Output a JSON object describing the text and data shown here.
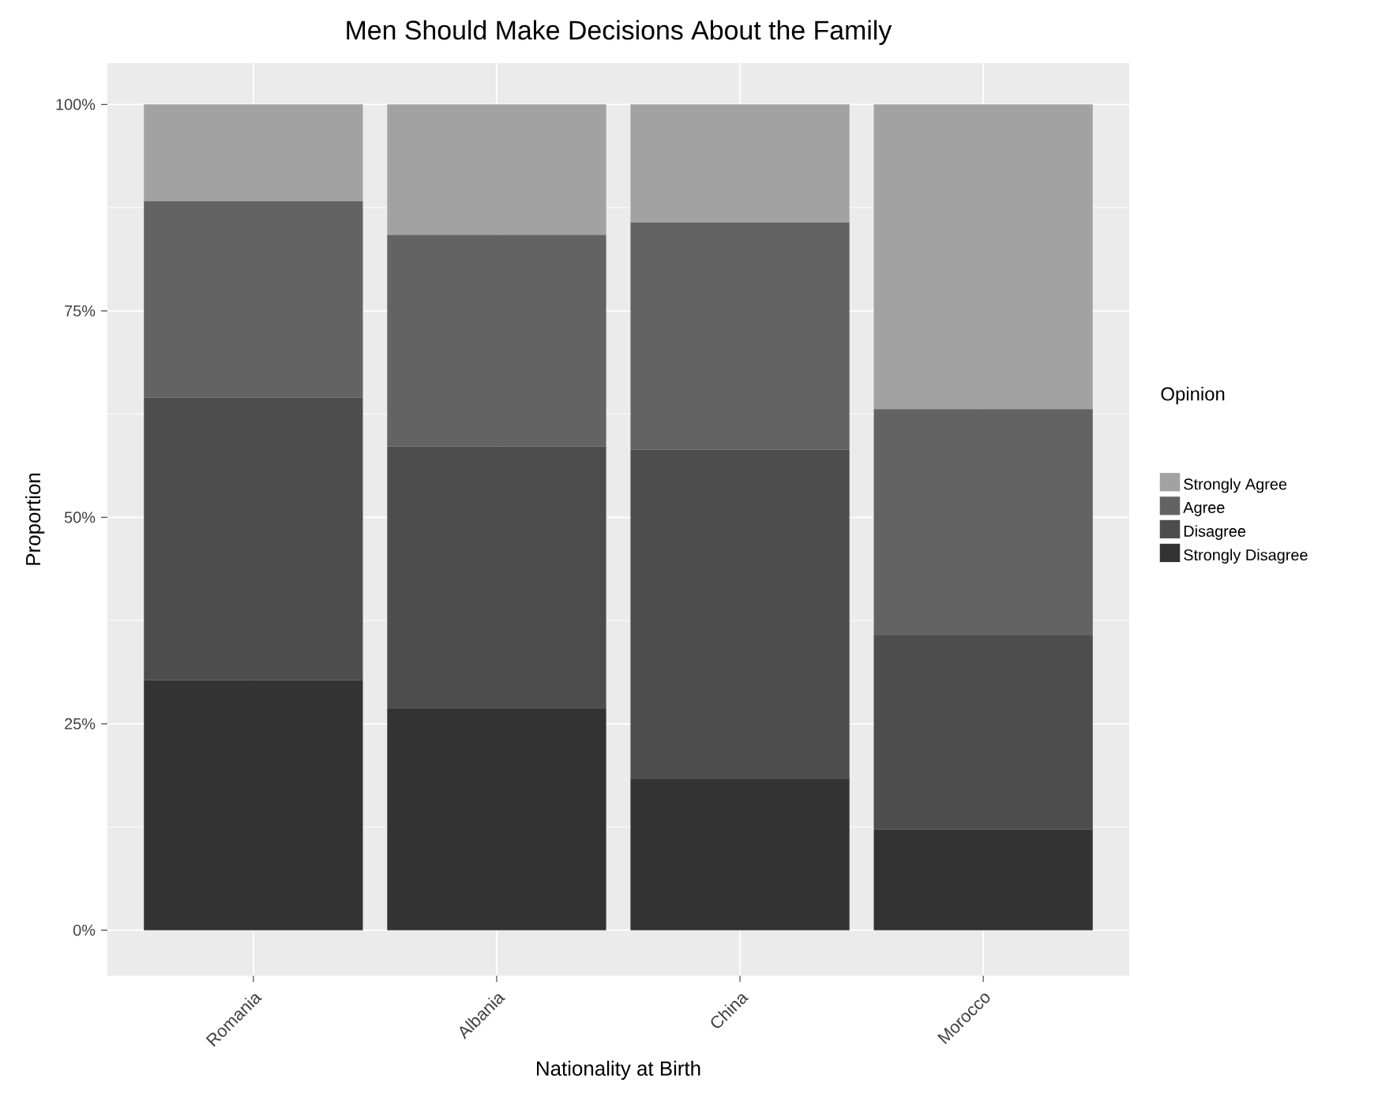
{
  "chart_data": {
    "type": "bar",
    "stacked": true,
    "title": "Men Should Make Decisions About the Family",
    "xlabel": "Nationality at Birth",
    "ylabel": "Proportion",
    "legend_title": "Opinion",
    "legend": "right",
    "grid": true,
    "categories": [
      "Romania",
      "Albania",
      "China",
      "Morocco"
    ],
    "ylim": [
      -5.5,
      105
    ],
    "yticks": [
      {
        "value": 0,
        "label": "0%"
      },
      {
        "value": 25,
        "label": "25%"
      },
      {
        "value": 50,
        "label": "50%"
      },
      {
        "value": 75,
        "label": "75%"
      },
      {
        "value": 100,
        "label": "100%"
      }
    ],
    "series": [
      {
        "name": "Strongly Disagree",
        "color": "#333333",
        "values": [
          30.3,
          26.8,
          18.3,
          12.2
        ]
      },
      {
        "name": "Disagree",
        "color": "#4d4d4d",
        "values": [
          34.2,
          31.8,
          39.9,
          23.5
        ]
      },
      {
        "name": "Agree",
        "color": "#636363",
        "values": [
          23.8,
          25.6,
          27.5,
          27.4
        ]
      },
      {
        "name": "Strongly Agree",
        "color": "#a2a2a2",
        "values": [
          11.7,
          15.8,
          14.3,
          36.9
        ]
      }
    ]
  }
}
